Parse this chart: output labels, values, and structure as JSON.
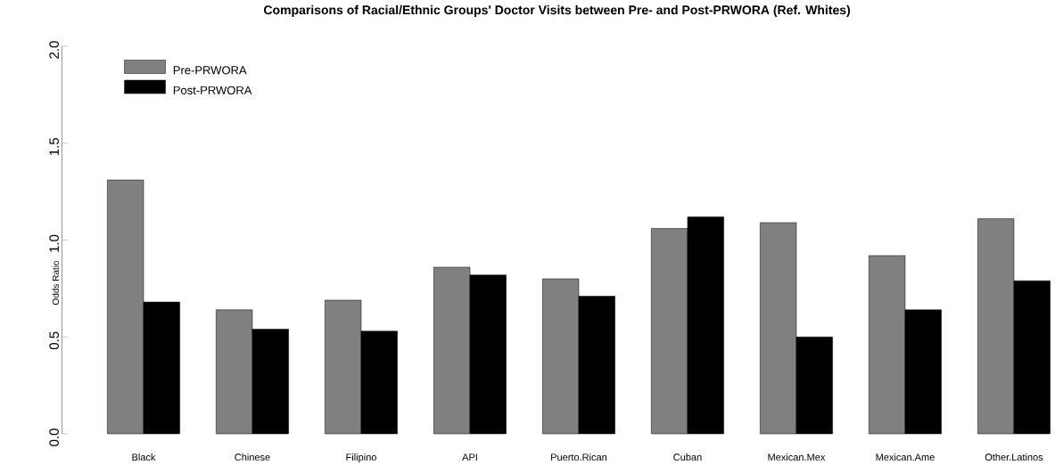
{
  "chart_data": {
    "type": "bar",
    "title": "Comparisons of Racial/Ethnic Groups' Doctor Visits between Pre- and Post-PRWORA (Ref. Whites)",
    "ylabel": "Odds Ratio",
    "categories": [
      "Black",
      "Chinese",
      "Filipino",
      "API",
      "Puerto.Rican",
      "Cuban",
      "Mexican.Mex",
      "Mexican.Ame",
      "Other.Latinos"
    ],
    "series": [
      {
        "name": "Pre-PRWORA",
        "color": "#808080",
        "values": [
          1.31,
          0.64,
          0.69,
          0.86,
          0.8,
          1.06,
          1.09,
          0.92,
          1.11
        ]
      },
      {
        "name": "Post-PRWORA",
        "color": "#000000",
        "values": [
          0.68,
          0.54,
          0.53,
          0.82,
          0.71,
          1.12,
          0.5,
          0.64,
          0.79
        ]
      }
    ],
    "ylim": [
      0,
      2
    ],
    "yticks": [
      {
        "value": 0,
        "label": "0.0"
      },
      {
        "value": 0.5,
        "label": "0.5"
      },
      {
        "value": 1,
        "label": "1.0"
      },
      {
        "value": 1.5,
        "label": "1.5"
      },
      {
        "value": 2,
        "label": "2.0"
      }
    ],
    "legend": "top left",
    "grid": false
  }
}
